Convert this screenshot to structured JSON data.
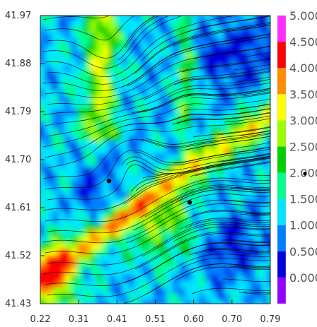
{
  "chart_data": {
    "type": "heatmap",
    "title": "",
    "xlabel": "",
    "ylabel": "",
    "x_ticks": [
      "0.22",
      "0.31",
      "0.41",
      "0.51",
      "0.60",
      "0.70",
      "0.79"
    ],
    "y_ticks": [
      "41.97",
      "41.88",
      "41.79",
      "41.70",
      "41.61",
      "41.52",
      "41.43"
    ],
    "xlim": [
      0.22,
      0.79
    ],
    "ylim": [
      41.43,
      41.97
    ],
    "overlay": "streamlines",
    "colorbar": {
      "labels": [
        "0.000",
        "0.500",
        "1.000",
        "1.500",
        "2.000",
        "2.500",
        "3.000",
        "3.500",
        "4.000",
        "4.500",
        "5.000"
      ],
      "colors": [
        "#9400ff",
        "#0000dc",
        "#0080ff",
        "#00e5ff",
        "#00ff8c",
        "#00d000",
        "#9cff00",
        "#ffff00",
        "#ff8c00",
        "#ff0000",
        "#ff30ff"
      ]
    },
    "markers": [
      {
        "x": 0.39,
        "y": 41.66
      },
      {
        "x": 0.59,
        "y": 41.62
      }
    ],
    "contour_levels": [
      {
        "level": 0.0,
        "color": "#0000dc"
      },
      {
        "level": 0.5,
        "color": "#0080ff"
      },
      {
        "level": 1.0,
        "color": "#00e5ff"
      },
      {
        "level": 1.5,
        "color": "#00ff8c"
      },
      {
        "level": 2.0,
        "color": "#00d000"
      },
      {
        "level": 2.5,
        "color": "#9cff00"
      },
      {
        "level": 3.0,
        "color": "#ffff00"
      },
      {
        "level": 3.5,
        "color": "#ff8c00"
      },
      {
        "level": 4.0,
        "color": "#ff0000"
      }
    ]
  }
}
